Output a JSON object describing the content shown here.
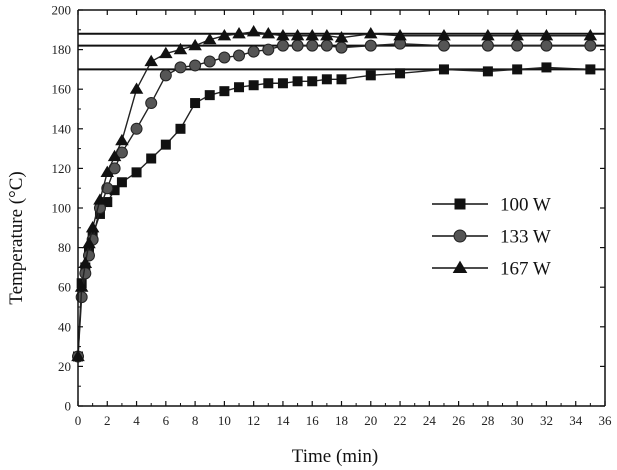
{
  "chart_data": {
    "type": "line",
    "title": "",
    "xlabel": "Time (min)",
    "ylabel": "Temperature (°C)",
    "xlim": [
      0,
      36
    ],
    "ylim": [
      0,
      200
    ],
    "xticks": [
      "0",
      "2",
      "4",
      "6",
      "8",
      "10",
      "12",
      "14",
      "16",
      "18",
      "20",
      "22",
      "24",
      "26",
      "28",
      "30",
      "32",
      "34",
      "36"
    ],
    "yticks": [
      "0",
      "20",
      "40",
      "60",
      "80",
      "100",
      "120",
      "140",
      "160",
      "180",
      "200"
    ],
    "grid": false,
    "legend_position": "middle-right",
    "reference_lines_y": [
      170,
      182,
      188
    ],
    "series": [
      {
        "name": "100 W",
        "marker": "square",
        "x": [
          0,
          0.25,
          0.5,
          0.75,
          1,
          1.5,
          2,
          2.5,
          3,
          4,
          5,
          6,
          7,
          8,
          9,
          10,
          11,
          12,
          13,
          14,
          15,
          16,
          17,
          18,
          20,
          22,
          25,
          28,
          30,
          32,
          35
        ],
        "y": [
          25,
          62,
          70,
          78,
          86,
          97,
          103,
          109,
          113,
          118,
          125,
          132,
          140,
          153,
          157,
          159,
          161,
          162,
          163,
          163,
          164,
          164,
          165,
          165,
          167,
          168,
          170,
          169,
          170,
          171,
          170
        ]
      },
      {
        "name": "133 W",
        "marker": "circle",
        "x": [
          0,
          0.25,
          0.5,
          0.75,
          1,
          1.5,
          2,
          2.5,
          3,
          4,
          5,
          6,
          7,
          8,
          9,
          10,
          11,
          12,
          13,
          14,
          15,
          16,
          17,
          18,
          20,
          22,
          25,
          28,
          30,
          32,
          35
        ],
        "y": [
          25,
          55,
          67,
          76,
          84,
          100,
          110,
          120,
          128,
          140,
          153,
          167,
          171,
          172,
          174,
          176,
          177,
          179,
          180,
          182,
          182,
          182,
          182,
          181,
          182,
          183,
          182,
          182,
          182,
          182,
          182
        ]
      },
      {
        "name": "167 W",
        "marker": "triangle",
        "x": [
          0,
          0.25,
          0.5,
          0.75,
          1,
          1.5,
          2,
          2.5,
          3,
          4,
          5,
          6,
          7,
          8,
          9,
          10,
          11,
          12,
          13,
          14,
          15,
          16,
          17,
          18,
          20,
          22,
          25,
          28,
          30,
          32,
          35
        ],
        "y": [
          25,
          60,
          72,
          82,
          90,
          104,
          118,
          126,
          134,
          160,
          174,
          178,
          180,
          182,
          185,
          187,
          188,
          189,
          188,
          187,
          187,
          187,
          187,
          186,
          188,
          187,
          187,
          187,
          187,
          187,
          187
        ]
      }
    ]
  }
}
